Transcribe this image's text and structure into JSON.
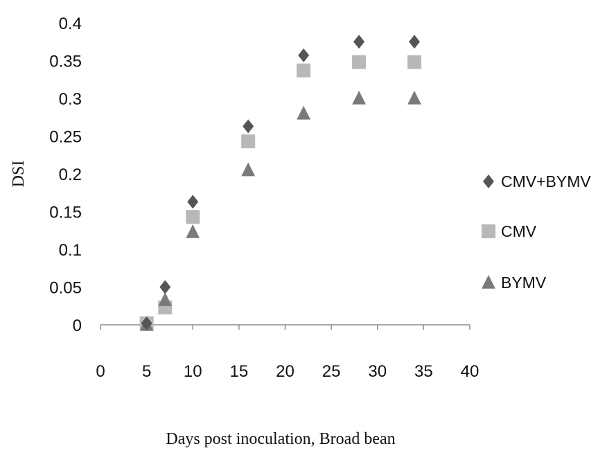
{
  "chart_data": {
    "type": "scatter",
    "xlabel": "Days post inoculation, Broad bean",
    "ylabel": "DSI",
    "xlim": [
      0,
      40
    ],
    "ylim": [
      0,
      0.4
    ],
    "x_ticks": [
      0,
      5,
      10,
      15,
      20,
      25,
      30,
      35,
      40
    ],
    "y_ticks": [
      "0",
      "0.05",
      "0.1",
      "0.15",
      "0.2",
      "0.25",
      "0.3",
      "0.35",
      "0.4"
    ],
    "grid": false,
    "legend_position": "right",
    "series": [
      {
        "name": "CMV+BYMV",
        "marker": "diamond",
        "color": "#555555",
        "x": [
          5,
          7,
          10,
          16,
          22,
          28,
          34
        ],
        "y": [
          0.002,
          0.05,
          0.163,
          0.263,
          0.357,
          0.375,
          0.375
        ]
      },
      {
        "name": "CMV",
        "marker": "square",
        "color": "#b8b8b8",
        "x": [
          5,
          7,
          10,
          16,
          22,
          28,
          34
        ],
        "y": [
          0.002,
          0.023,
          0.143,
          0.243,
          0.337,
          0.348,
          0.348
        ]
      },
      {
        "name": "BYMV",
        "marker": "triangle",
        "color": "#7a7a7a",
        "x": [
          5,
          7,
          10,
          16,
          22,
          28,
          34
        ],
        "y": [
          0.0,
          0.033,
          0.123,
          0.205,
          0.28,
          0.3,
          0.3
        ]
      }
    ]
  }
}
